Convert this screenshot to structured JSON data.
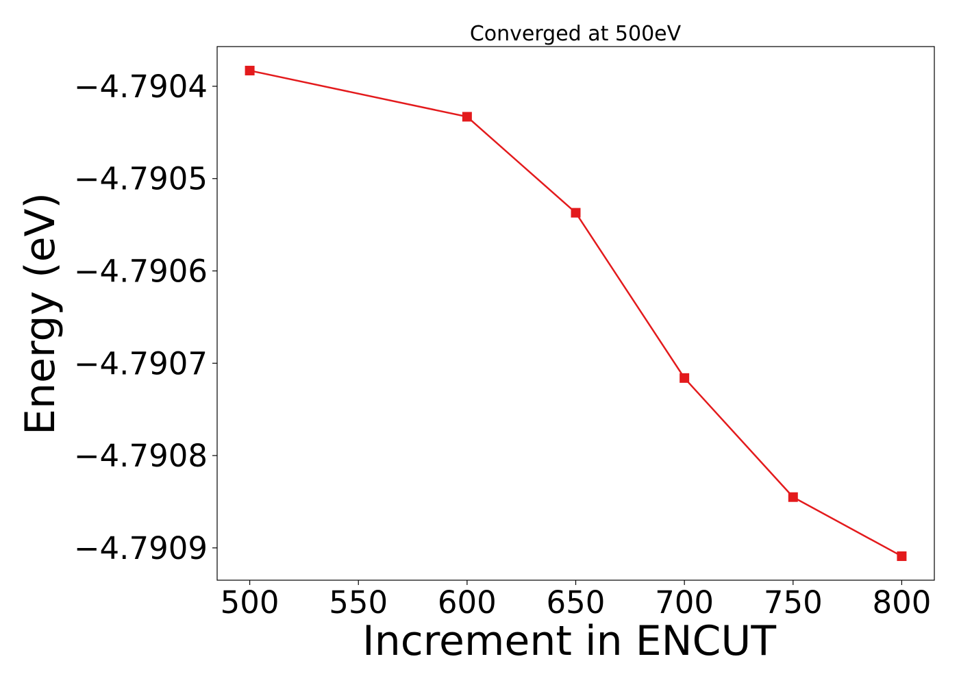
{
  "chart_data": {
    "type": "line",
    "title": "Converged at 500eV",
    "xlabel": "Increment in ENCUT",
    "ylabel": "Energy (eV)",
    "xlim": [
      485,
      815
    ],
    "ylim": [
      -4.790935,
      -4.790357
    ],
    "x_ticks": [
      500,
      550,
      600,
      650,
      700,
      750,
      800
    ],
    "x_tick_labels": [
      "500",
      "550",
      "600",
      "650",
      "700",
      "750",
      "800"
    ],
    "y_ticks": [
      -4.7904,
      -4.7905,
      -4.7906,
      -4.7907,
      -4.7908,
      -4.7909
    ],
    "y_tick_labels": [
      "−4.7904",
      "−4.7905",
      "−4.7906",
      "−4.7907",
      "−4.7908",
      "−4.7909"
    ],
    "grid": false,
    "series": [
      {
        "color": "#e31a1c",
        "marker": "square",
        "x": [
          500,
          600,
          650,
          700,
          750,
          800
        ],
        "y": [
          -4.790383,
          -4.790433,
          -4.790537,
          -4.790716,
          -4.790845,
          -4.790909
        ]
      }
    ]
  }
}
